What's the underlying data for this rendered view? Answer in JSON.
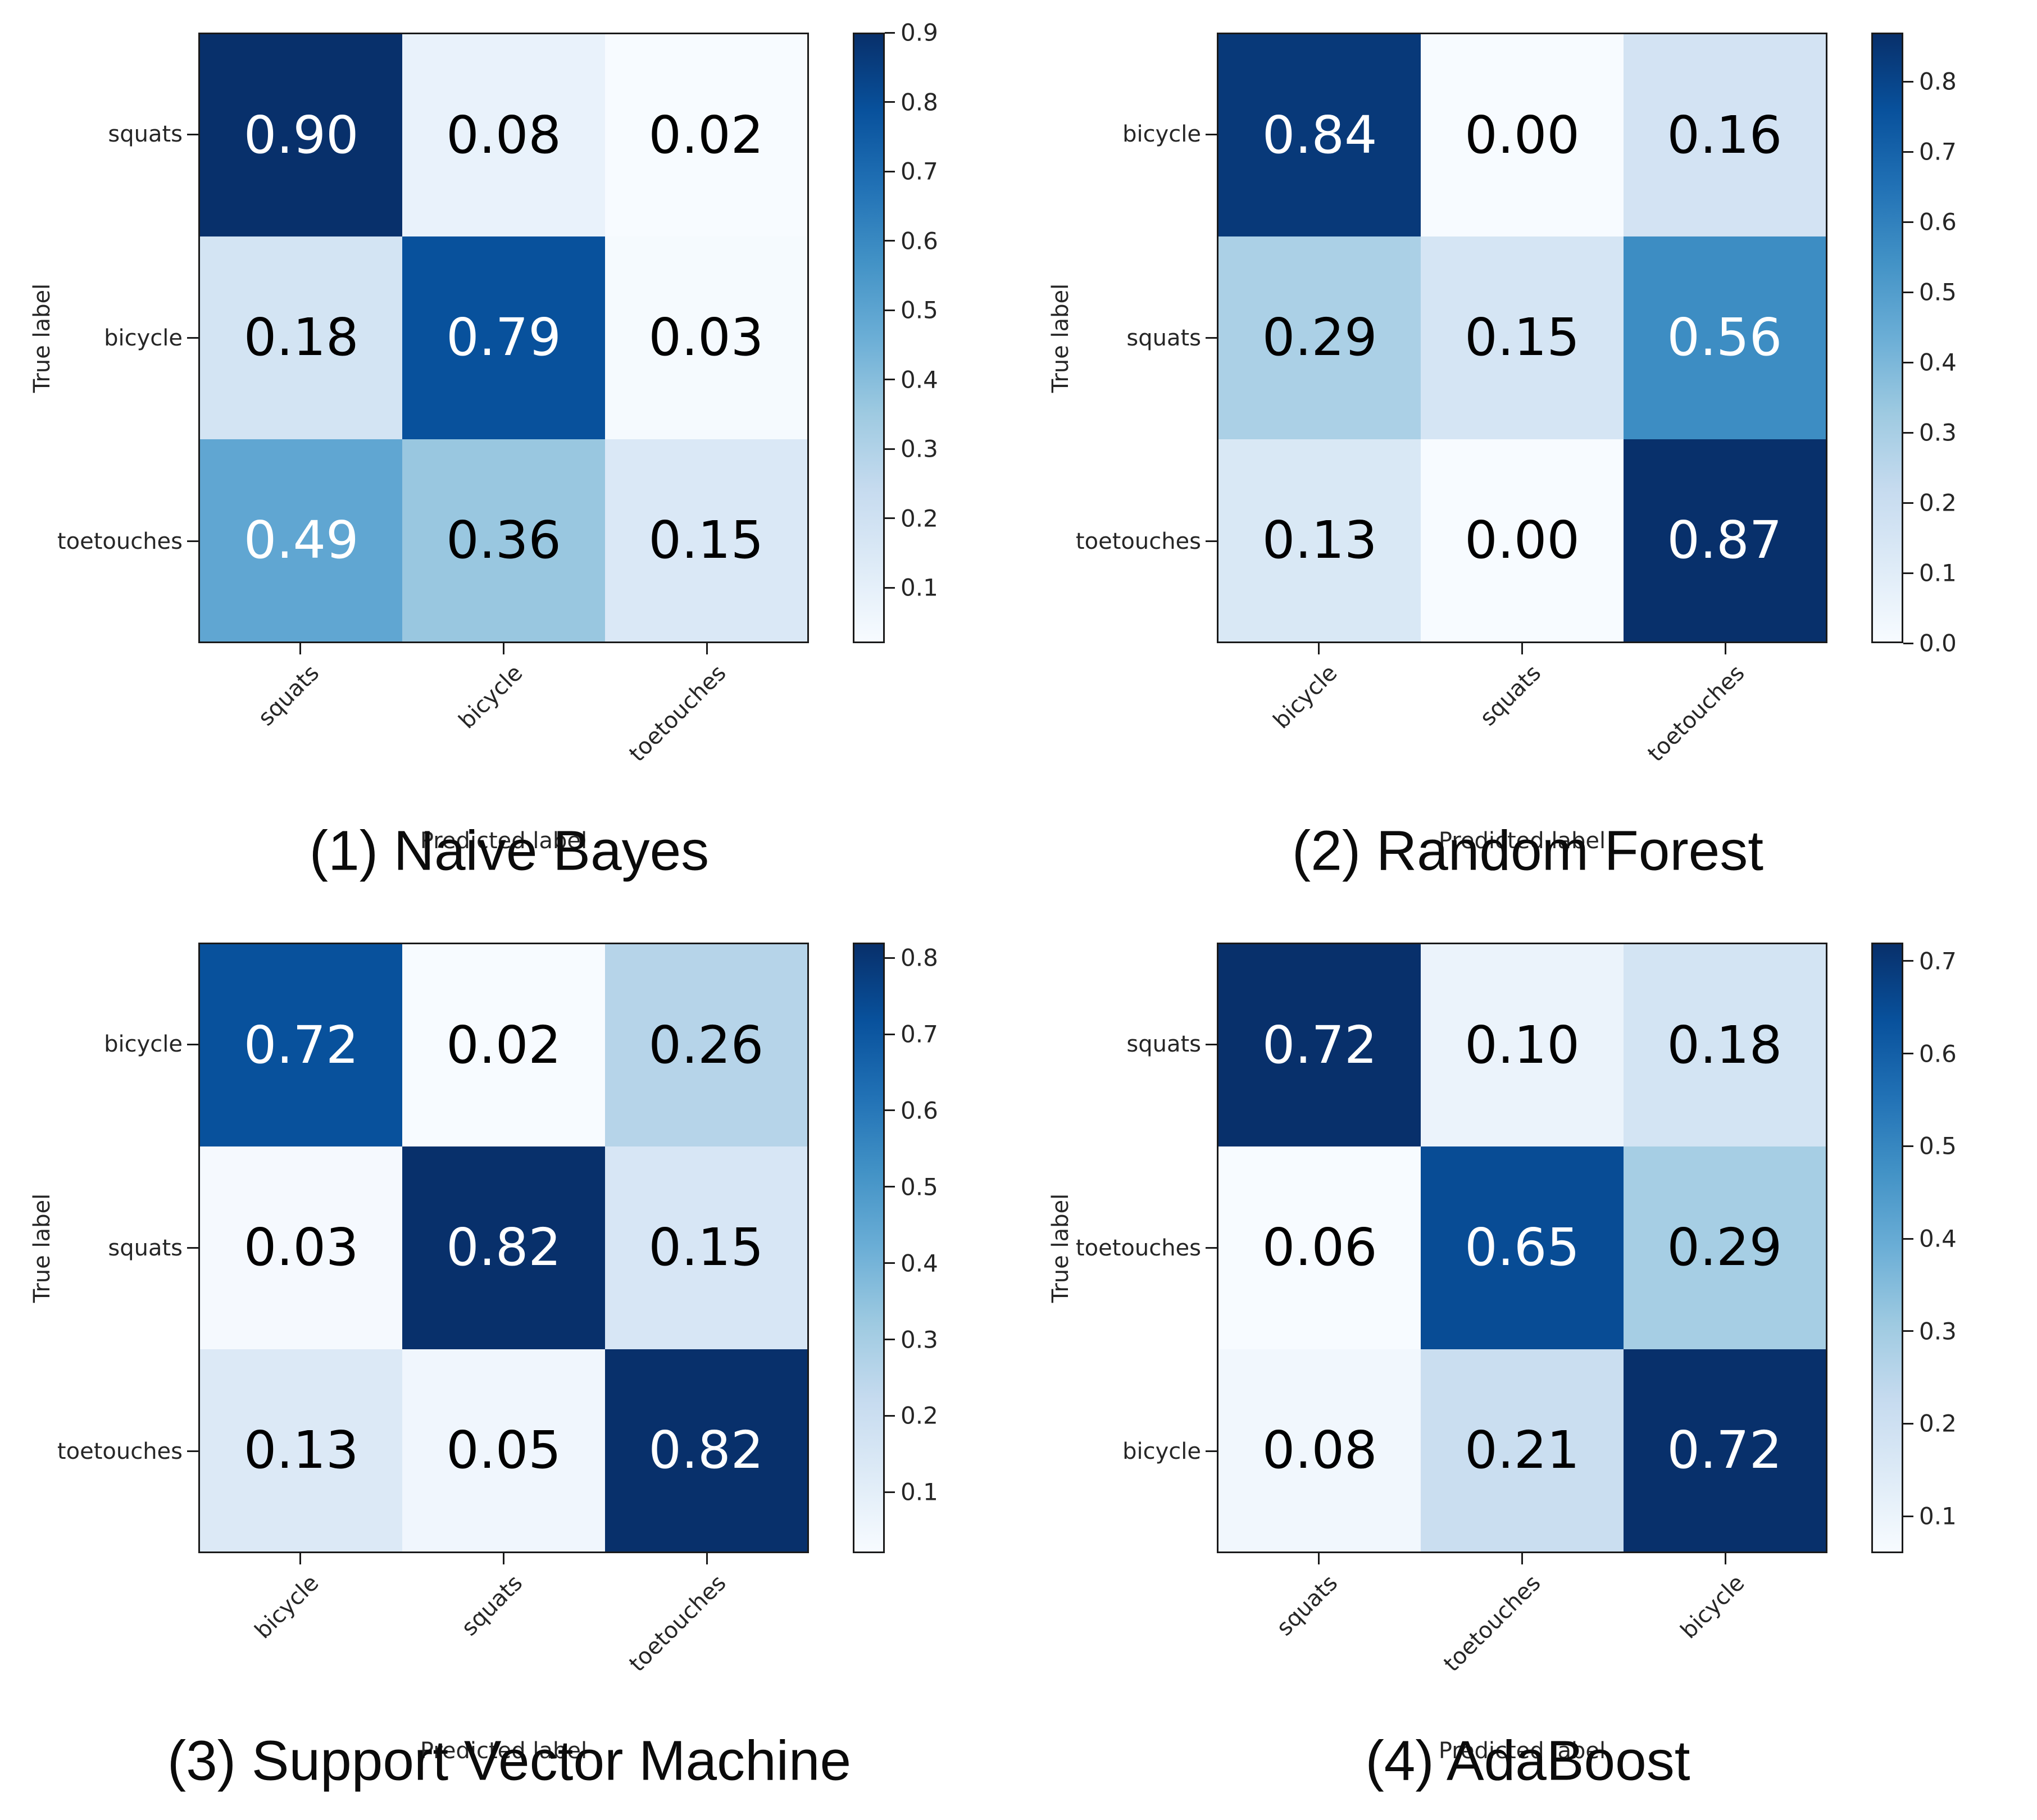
{
  "page": {
    "background": "#ffffff"
  },
  "colormap": {
    "name": "Blues",
    "anchors": [
      "#f7fbff",
      "#deebf7",
      "#c6dbef",
      "#9ecae1",
      "#6baed6",
      "#4292c6",
      "#2171b5",
      "#08519c",
      "#08306b"
    ],
    "text_light": "#ffffff",
    "text_dark": "#000000"
  },
  "chart_data": [
    {
      "type": "heatmap",
      "caption": "(1) Naive Bayes",
      "xlabel": "Predicted label",
      "ylabel": "True label",
      "x_tick_labels": [
        "squats",
        "bicycle",
        "toetouches"
      ],
      "y_tick_labels": [
        "squats",
        "bicycle",
        "toetouches"
      ],
      "values": [
        [
          "0.90",
          "0.08",
          "0.02"
        ],
        [
          "0.18",
          "0.79",
          "0.03"
        ],
        [
          "0.49",
          "0.36",
          "0.15"
        ]
      ],
      "vmin": 0.02,
      "vmax": 0.9,
      "colorbar_tick_labels": [
        "0.9",
        "0.8",
        "0.7",
        "0.6",
        "0.5",
        "0.4",
        "0.3",
        "0.2",
        "0.1"
      ],
      "legend_position": "right",
      "grid": "off"
    },
    {
      "type": "heatmap",
      "caption": "(2) Random Forest",
      "xlabel": "Predicted label",
      "ylabel": "True label",
      "x_tick_labels": [
        "bicycle",
        "squats",
        "toetouches"
      ],
      "y_tick_labels": [
        "bicycle",
        "squats",
        "toetouches"
      ],
      "values": [
        [
          "0.84",
          "0.00",
          "0.16"
        ],
        [
          "0.29",
          "0.15",
          "0.56"
        ],
        [
          "0.13",
          "0.00",
          "0.87"
        ]
      ],
      "vmin": 0.0,
      "vmax": 0.87,
      "colorbar_tick_labels": [
        "0.8",
        "0.7",
        "0.6",
        "0.5",
        "0.4",
        "0.3",
        "0.2",
        "0.1",
        "0.0"
      ],
      "legend_position": "right",
      "grid": "off"
    },
    {
      "type": "heatmap",
      "caption": "(3) Support Vector Machine",
      "xlabel": "Predicted label",
      "ylabel": "True label",
      "x_tick_labels": [
        "bicycle",
        "squats",
        "toetouches"
      ],
      "y_tick_labels": [
        "bicycle",
        "squats",
        "toetouches"
      ],
      "values": [
        [
          "0.72",
          "0.02",
          "0.26"
        ],
        [
          "0.03",
          "0.82",
          "0.15"
        ],
        [
          "0.13",
          "0.05",
          "0.82"
        ]
      ],
      "vmin": 0.02,
      "vmax": 0.82,
      "colorbar_tick_labels": [
        "0.8",
        "0.7",
        "0.6",
        "0.5",
        "0.4",
        "0.3",
        "0.2",
        "0.1"
      ],
      "legend_position": "right",
      "grid": "off"
    },
    {
      "type": "heatmap",
      "caption": "(4) AdaBoost",
      "xlabel": "Predicted label",
      "ylabel": "True label",
      "x_tick_labels": [
        "squats",
        "toetouches",
        "bicycle"
      ],
      "y_tick_labels": [
        "squats",
        "toetouches",
        "bicycle"
      ],
      "values": [
        [
          "0.72",
          "0.10",
          "0.18"
        ],
        [
          "0.06",
          "0.65",
          "0.29"
        ],
        [
          "0.08",
          "0.21",
          "0.72"
        ]
      ],
      "vmin": 0.06,
      "vmax": 0.72,
      "colorbar_tick_labels": [
        "0.7",
        "0.6",
        "0.5",
        "0.4",
        "0.3",
        "0.2",
        "0.1"
      ],
      "legend_position": "right",
      "grid": "off"
    }
  ]
}
